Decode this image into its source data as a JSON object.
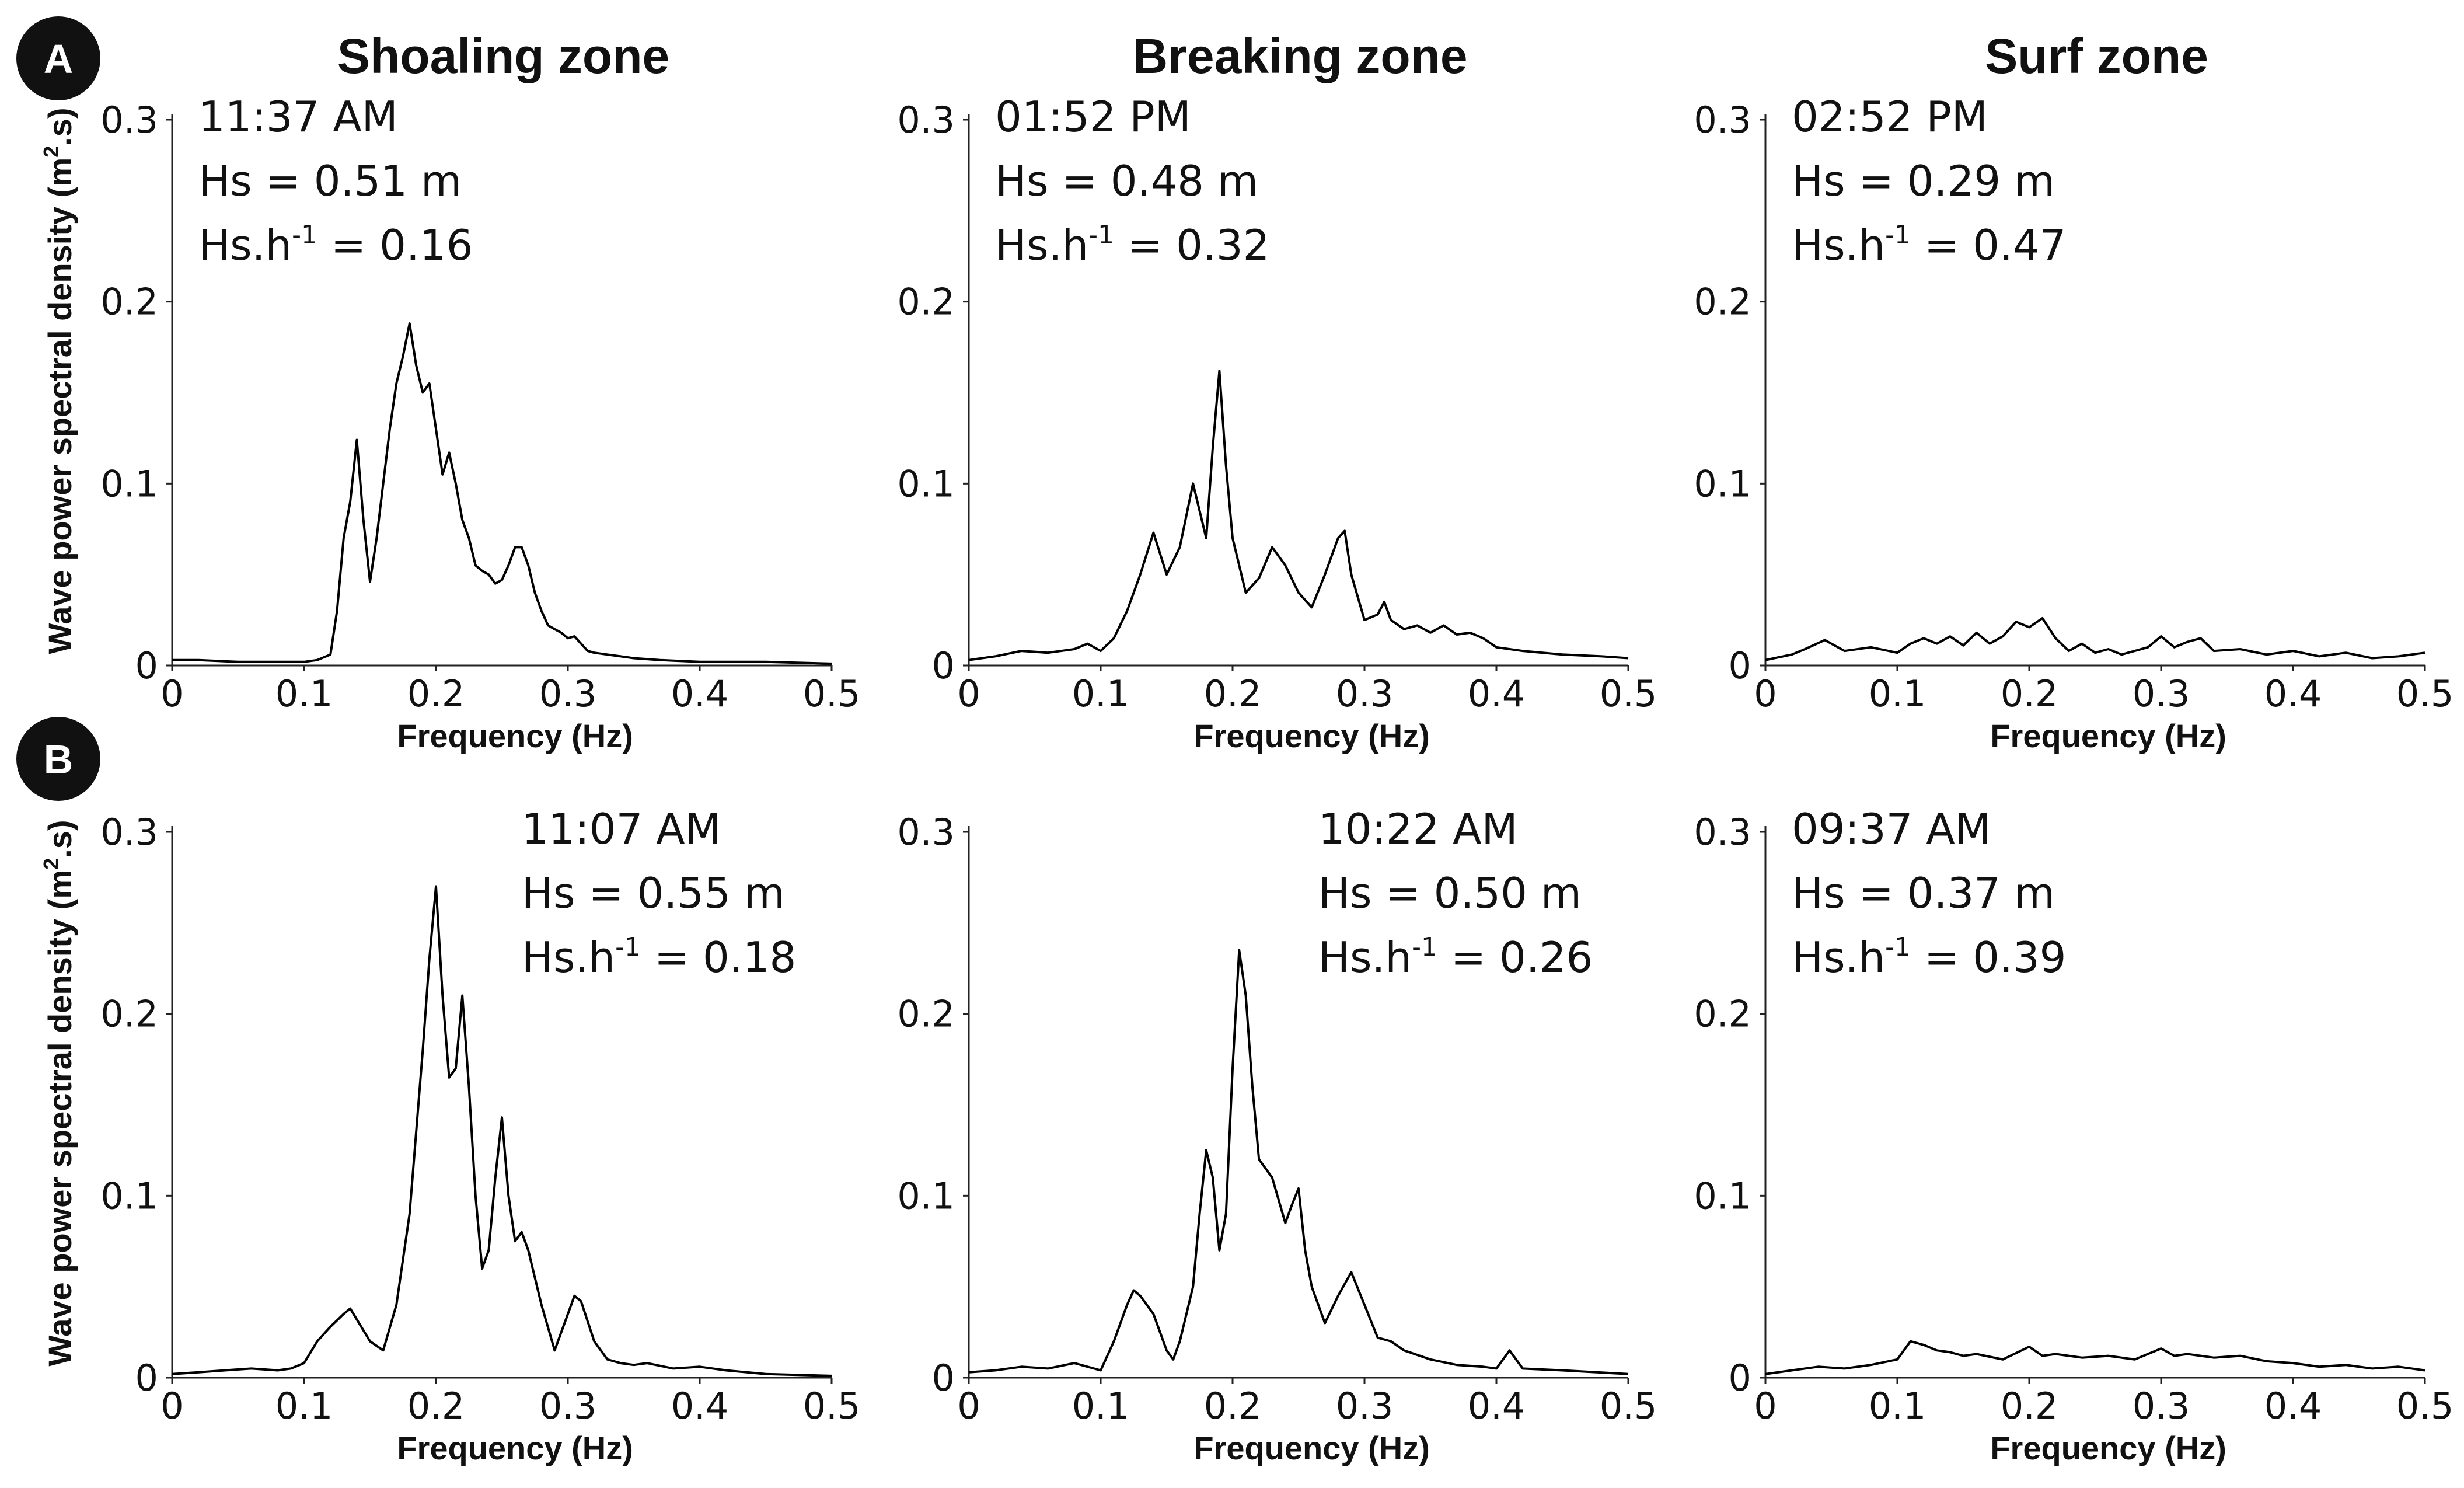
{
  "figure": {
    "column_titles": [
      "Shoaling zone",
      "Breaking zone",
      "Surf zone"
    ],
    "row_labels": [
      "A",
      "B"
    ],
    "ylabel_main": "Wave power spectral density (m",
    "ylabel_sup": "2",
    "ylabel_end": ".s)",
    "xlabel": "Frequency (Hz)",
    "x_ticks": [
      "0",
      "0.1",
      "0.2",
      "0.3",
      "0.4",
      "0.5"
    ],
    "y_ticks": [
      "0",
      "0.1",
      "0.2",
      "0.3"
    ],
    "colors": {
      "line": "#000000",
      "badge": "#111111",
      "axis": "#222222"
    }
  },
  "chart_data": [
    {
      "type": "line",
      "row": "A",
      "zone": "Shoaling zone",
      "time": "11:37 AM",
      "hs": "Hs = 0.51 m",
      "hsh_prefix": "Hs.h",
      "hsh_sup": "-1",
      "hsh_value": " = 0.16",
      "annotation_align": "left",
      "xlabel": "Frequency (Hz)",
      "xlim": [
        0,
        0.5
      ],
      "ylim": [
        0,
        0.3
      ],
      "x": [
        0,
        0.02,
        0.05,
        0.08,
        0.1,
        0.11,
        0.12,
        0.125,
        0.13,
        0.135,
        0.14,
        0.145,
        0.15,
        0.155,
        0.16,
        0.165,
        0.17,
        0.175,
        0.18,
        0.185,
        0.19,
        0.195,
        0.2,
        0.205,
        0.21,
        0.215,
        0.22,
        0.225,
        0.23,
        0.235,
        0.24,
        0.245,
        0.25,
        0.255,
        0.26,
        0.265,
        0.27,
        0.275,
        0.28,
        0.285,
        0.29,
        0.295,
        0.3,
        0.305,
        0.31,
        0.315,
        0.32,
        0.33,
        0.34,
        0.35,
        0.37,
        0.4,
        0.45,
        0.5
      ],
      "y": [
        0.003,
        0.003,
        0.002,
        0.002,
        0.002,
        0.003,
        0.006,
        0.03,
        0.07,
        0.09,
        0.124,
        0.08,
        0.046,
        0.07,
        0.1,
        0.13,
        0.155,
        0.17,
        0.188,
        0.165,
        0.15,
        0.155,
        0.13,
        0.105,
        0.117,
        0.1,
        0.08,
        0.07,
        0.055,
        0.052,
        0.05,
        0.045,
        0.047,
        0.055,
        0.065,
        0.065,
        0.055,
        0.04,
        0.03,
        0.022,
        0.02,
        0.018,
        0.015,
        0.016,
        0.012,
        0.008,
        0.007,
        0.006,
        0.005,
        0.004,
        0.003,
        0.002,
        0.002,
        0.001
      ]
    },
    {
      "type": "line",
      "row": "A",
      "zone": "Breaking zone",
      "time": "01:52 PM",
      "hs": "Hs = 0.48 m",
      "hsh_prefix": "Hs.h",
      "hsh_sup": "-1",
      "hsh_value": " = 0.32",
      "annotation_align": "left",
      "xlabel": "Frequency (Hz)",
      "xlim": [
        0,
        0.5
      ],
      "ylim": [
        0,
        0.3
      ],
      "x": [
        0,
        0.02,
        0.04,
        0.06,
        0.08,
        0.09,
        0.1,
        0.11,
        0.12,
        0.13,
        0.14,
        0.15,
        0.16,
        0.17,
        0.175,
        0.18,
        0.185,
        0.19,
        0.195,
        0.2,
        0.21,
        0.22,
        0.23,
        0.24,
        0.25,
        0.26,
        0.27,
        0.28,
        0.285,
        0.29,
        0.3,
        0.31,
        0.315,
        0.32,
        0.33,
        0.34,
        0.35,
        0.36,
        0.37,
        0.38,
        0.39,
        0.4,
        0.42,
        0.45,
        0.48,
        0.5
      ],
      "y": [
        0.003,
        0.005,
        0.008,
        0.007,
        0.009,
        0.012,
        0.008,
        0.015,
        0.03,
        0.05,
        0.073,
        0.05,
        0.065,
        0.1,
        0.085,
        0.07,
        0.12,
        0.162,
        0.11,
        0.07,
        0.04,
        0.048,
        0.065,
        0.055,
        0.04,
        0.032,
        0.05,
        0.07,
        0.074,
        0.05,
        0.025,
        0.028,
        0.035,
        0.025,
        0.02,
        0.022,
        0.018,
        0.022,
        0.017,
        0.018,
        0.015,
        0.01,
        0.008,
        0.006,
        0.005,
        0.004
      ]
    },
    {
      "type": "line",
      "row": "A",
      "zone": "Surf zone",
      "time": "02:52 PM",
      "hs": "Hs = 0.29 m",
      "hsh_prefix": "Hs.h",
      "hsh_sup": "-1",
      "hsh_value": " = 0.47",
      "annotation_align": "left",
      "xlabel": "Frequency (Hz)",
      "xlim": [
        0,
        0.5
      ],
      "ylim": [
        0,
        0.3
      ],
      "x": [
        0,
        0.02,
        0.03,
        0.045,
        0.06,
        0.08,
        0.1,
        0.11,
        0.12,
        0.13,
        0.14,
        0.15,
        0.16,
        0.17,
        0.18,
        0.19,
        0.2,
        0.21,
        0.22,
        0.23,
        0.24,
        0.25,
        0.26,
        0.27,
        0.28,
        0.29,
        0.3,
        0.31,
        0.32,
        0.33,
        0.34,
        0.36,
        0.38,
        0.4,
        0.42,
        0.44,
        0.46,
        0.48,
        0.5
      ],
      "y": [
        0.003,
        0.006,
        0.009,
        0.014,
        0.008,
        0.01,
        0.007,
        0.012,
        0.015,
        0.012,
        0.016,
        0.011,
        0.018,
        0.012,
        0.016,
        0.024,
        0.021,
        0.026,
        0.015,
        0.008,
        0.012,
        0.007,
        0.009,
        0.006,
        0.008,
        0.01,
        0.016,
        0.01,
        0.013,
        0.015,
        0.008,
        0.009,
        0.006,
        0.008,
        0.005,
        0.007,
        0.004,
        0.005,
        0.007
      ]
    },
    {
      "type": "line",
      "row": "B",
      "zone": "Shoaling zone",
      "time": "11:07 AM",
      "hs": "Hs = 0.55 m",
      "hsh_prefix": "Hs.h",
      "hsh_sup": "-1",
      "hsh_value": " = 0.18",
      "annotation_align": "right",
      "xlabel": "Frequency (Hz)",
      "xlim": [
        0,
        0.5
      ],
      "ylim": [
        0,
        0.3
      ],
      "x": [
        0,
        0.02,
        0.04,
        0.06,
        0.08,
        0.09,
        0.1,
        0.11,
        0.12,
        0.13,
        0.135,
        0.14,
        0.15,
        0.16,
        0.17,
        0.18,
        0.19,
        0.195,
        0.2,
        0.205,
        0.21,
        0.215,
        0.22,
        0.225,
        0.23,
        0.235,
        0.24,
        0.245,
        0.25,
        0.255,
        0.26,
        0.265,
        0.27,
        0.28,
        0.29,
        0.3,
        0.305,
        0.31,
        0.32,
        0.33,
        0.34,
        0.35,
        0.36,
        0.38,
        0.4,
        0.42,
        0.45,
        0.5
      ],
      "y": [
        0.002,
        0.003,
        0.004,
        0.005,
        0.004,
        0.005,
        0.008,
        0.02,
        0.028,
        0.035,
        0.038,
        0.032,
        0.02,
        0.015,
        0.04,
        0.09,
        0.18,
        0.23,
        0.27,
        0.21,
        0.165,
        0.17,
        0.21,
        0.16,
        0.1,
        0.06,
        0.07,
        0.11,
        0.143,
        0.1,
        0.075,
        0.08,
        0.07,
        0.04,
        0.015,
        0.035,
        0.045,
        0.042,
        0.02,
        0.01,
        0.008,
        0.007,
        0.008,
        0.005,
        0.006,
        0.004,
        0.002,
        0.001
      ]
    },
    {
      "type": "line",
      "row": "B",
      "zone": "Breaking zone",
      "time": "10:22 AM",
      "hs": "Hs = 0.50 m",
      "hsh_prefix": "Hs.h",
      "hsh_sup": "-1",
      "hsh_value": " = 0.26",
      "annotation_align": "right",
      "xlabel": "Frequency (Hz)",
      "xlim": [
        0,
        0.5
      ],
      "ylim": [
        0,
        0.3
      ],
      "x": [
        0,
        0.02,
        0.04,
        0.06,
        0.08,
        0.1,
        0.11,
        0.12,
        0.125,
        0.13,
        0.14,
        0.15,
        0.155,
        0.16,
        0.17,
        0.175,
        0.18,
        0.185,
        0.19,
        0.195,
        0.2,
        0.205,
        0.21,
        0.215,
        0.22,
        0.23,
        0.24,
        0.245,
        0.25,
        0.255,
        0.26,
        0.27,
        0.28,
        0.29,
        0.3,
        0.31,
        0.32,
        0.33,
        0.35,
        0.37,
        0.39,
        0.4,
        0.41,
        0.42,
        0.45,
        0.5
      ],
      "y": [
        0.003,
        0.004,
        0.006,
        0.005,
        0.008,
        0.004,
        0.02,
        0.04,
        0.048,
        0.045,
        0.035,
        0.015,
        0.01,
        0.02,
        0.05,
        0.09,
        0.125,
        0.11,
        0.07,
        0.09,
        0.17,
        0.235,
        0.21,
        0.16,
        0.12,
        0.11,
        0.085,
        0.095,
        0.104,
        0.07,
        0.05,
        0.03,
        0.045,
        0.058,
        0.04,
        0.022,
        0.02,
        0.015,
        0.01,
        0.007,
        0.006,
        0.005,
        0.015,
        0.005,
        0.004,
        0.002
      ]
    },
    {
      "type": "line",
      "row": "B",
      "zone": "Surf zone",
      "time": "09:37 AM",
      "hs": "Hs = 0.37 m",
      "hsh_prefix": "Hs.h",
      "hsh_sup": "-1",
      "hsh_value": " = 0.39",
      "annotation_align": "left",
      "xlabel": "Frequency (Hz)",
      "xlim": [
        0,
        0.5
      ],
      "ylim": [
        0,
        0.3
      ],
      "x": [
        0,
        0.02,
        0.04,
        0.06,
        0.08,
        0.1,
        0.11,
        0.12,
        0.13,
        0.14,
        0.15,
        0.16,
        0.18,
        0.2,
        0.21,
        0.22,
        0.24,
        0.26,
        0.28,
        0.3,
        0.31,
        0.32,
        0.34,
        0.36,
        0.38,
        0.4,
        0.42,
        0.44,
        0.46,
        0.48,
        0.5
      ],
      "y": [
        0.002,
        0.004,
        0.006,
        0.005,
        0.007,
        0.01,
        0.02,
        0.018,
        0.015,
        0.014,
        0.012,
        0.013,
        0.01,
        0.017,
        0.012,
        0.013,
        0.011,
        0.012,
        0.01,
        0.016,
        0.012,
        0.013,
        0.011,
        0.012,
        0.009,
        0.008,
        0.006,
        0.007,
        0.005,
        0.006,
        0.004
      ]
    }
  ]
}
